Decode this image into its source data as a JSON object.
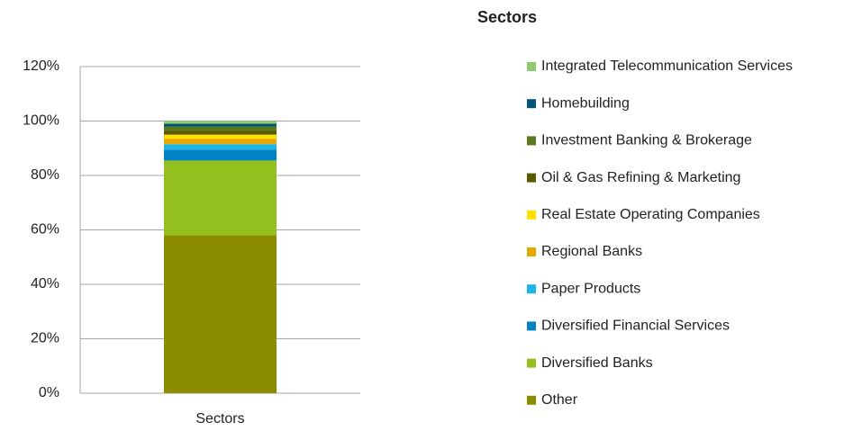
{
  "chart_data": {
    "type": "stacked_bar",
    "title": "Sectors",
    "categories": [
      "Sectors"
    ],
    "series": [
      {
        "name": "Other",
        "color": "#8c8c00",
        "values": [
          58
        ]
      },
      {
        "name": "Diversified Banks",
        "color": "#93c01f",
        "values": [
          27.5
        ]
      },
      {
        "name": "Diversified Financial Services",
        "color": "#0083c3",
        "values": [
          4
        ]
      },
      {
        "name": "Paper Products",
        "color": "#1db5e6",
        "values": [
          2
        ]
      },
      {
        "name": "Regional Banks",
        "color": "#e8a800",
        "values": [
          2
        ]
      },
      {
        "name": "Real Estate Operating Companies",
        "color": "#ffe000",
        "values": [
          1.5
        ]
      },
      {
        "name": "Oil & Gas Refining & Marketing",
        "color": "#5a5a00",
        "values": [
          1.5
        ]
      },
      {
        "name": "Investment Banking & Brokerage",
        "color": "#5a7a1e",
        "values": [
          1.5
        ]
      },
      {
        "name": "Homebuilding",
        "color": "#00567a",
        "values": [
          1
        ]
      },
      {
        "name": "Integrated Telecommunication Services",
        "color": "#8fcb6e",
        "values": [
          1
        ]
      }
    ],
    "ylim": [
      0,
      120
    ],
    "yticks": [
      {
        "value": 0,
        "label": "0%"
      },
      {
        "value": 20,
        "label": "20%"
      },
      {
        "value": 40,
        "label": "40%"
      },
      {
        "value": 60,
        "label": "60%"
      },
      {
        "value": 80,
        "label": "80%"
      },
      {
        "value": 100,
        "label": "100%"
      },
      {
        "value": 120,
        "label": "120%"
      }
    ],
    "grid": true,
    "legend": "right"
  }
}
